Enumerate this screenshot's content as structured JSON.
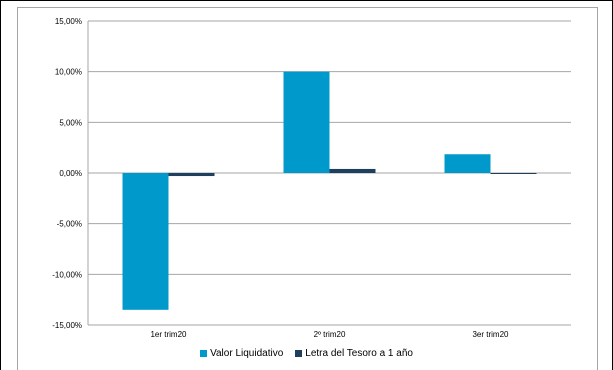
{
  "chart_data": {
    "type": "bar",
    "title": "",
    "xlabel": "",
    "ylabel": "",
    "categories": [
      "1er trim20",
      "2º trim20",
      "3er trim20"
    ],
    "series": [
      {
        "name": "Valor Liquidativo",
        "color": "#0099cc",
        "values": [
          -13.5,
          10.0,
          1.85
        ]
      },
      {
        "name": "Letra del Tesoro a 1 año",
        "color": "#1f3f5f",
        "values": [
          -0.3,
          0.4,
          -0.05
        ]
      }
    ],
    "ylim": [
      -15,
      15
    ],
    "yticks": [
      "15,00%",
      "10,00%",
      "5,00%",
      "0,00%",
      "-5,00%",
      "-10,00%",
      "-15,00%"
    ],
    "grid": true,
    "legend_position": "bottom"
  }
}
